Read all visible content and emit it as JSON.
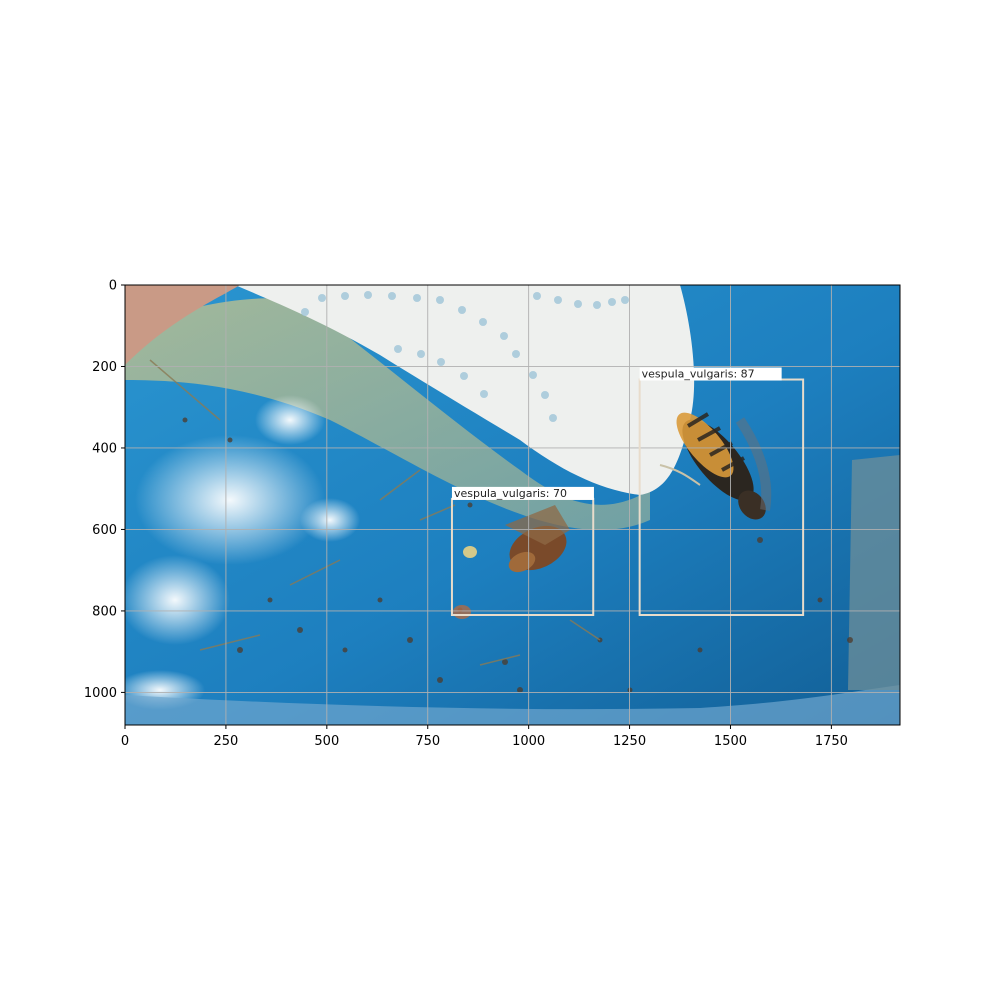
{
  "image": {
    "width": 1920,
    "height": 1080,
    "x_ticks": [
      0,
      250,
      500,
      750,
      1000,
      1250,
      1500,
      1750
    ],
    "y_ticks": [
      0,
      200,
      400,
      600,
      800,
      1000
    ],
    "x_tick_labels": [
      "0",
      "250",
      "500",
      "750",
      "1000",
      "1250",
      "1500",
      "1750"
    ],
    "y_tick_labels": [
      "0",
      "200",
      "400",
      "600",
      "800",
      "1000"
    ],
    "grid": true
  },
  "detections": [
    {
      "label": "vespula_vulgaris: 70",
      "x0": 810,
      "y0": 525,
      "x1": 1160,
      "y1": 810,
      "color": "#e8dccb"
    },
    {
      "label": "vespula_vulgaris: 87",
      "x0": 1275,
      "y0": 232,
      "x1": 1680,
      "y1": 810,
      "color": "#e8dccb"
    }
  ],
  "colors": {
    "water_blue": "#1f86c4",
    "paper_towel": "#eef0ee",
    "grid": "#b0b0b0"
  }
}
